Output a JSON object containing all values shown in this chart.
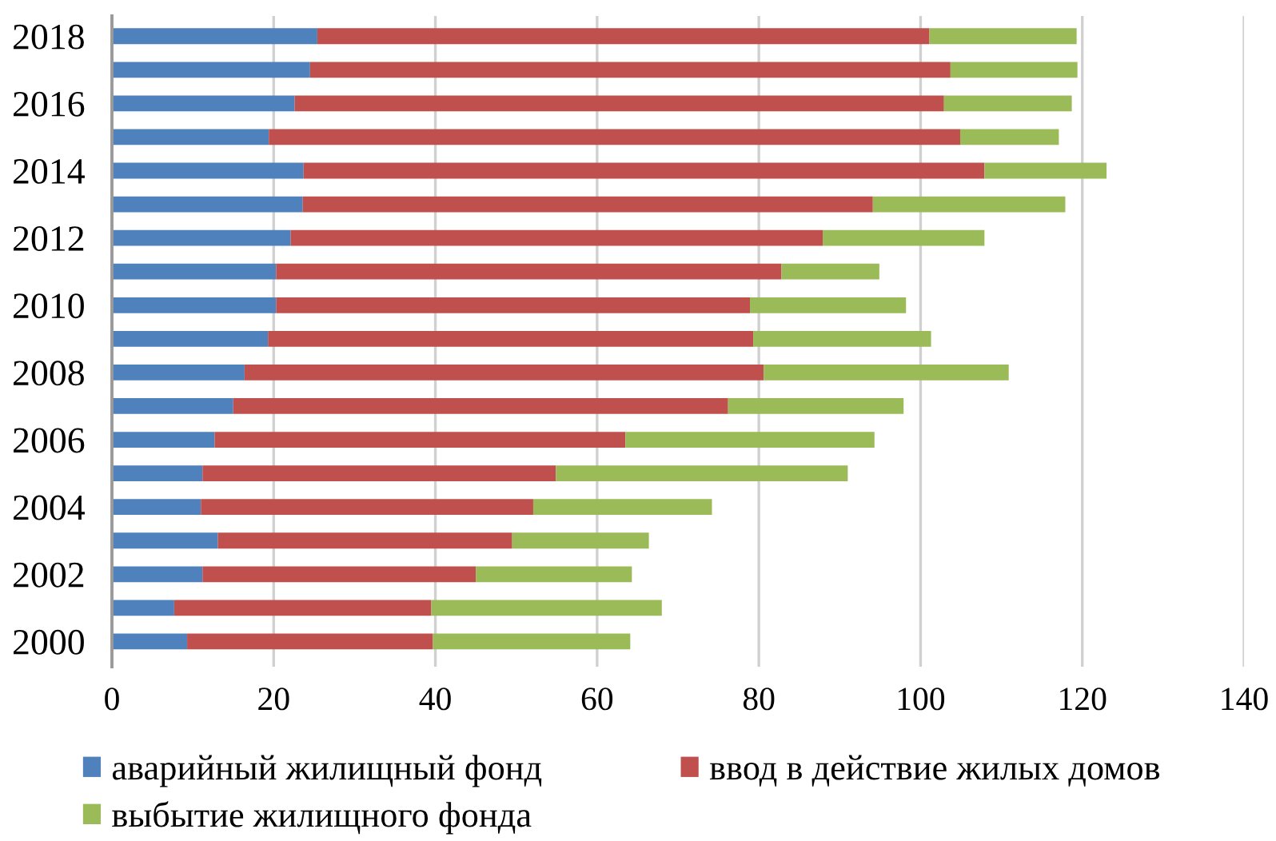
{
  "chart_data": {
    "type": "bar",
    "orientation": "horizontal",
    "stacked": true,
    "categories": [
      "2018",
      null,
      "2016",
      null,
      "2014",
      null,
      "2012",
      null,
      "2010",
      null,
      "2008",
      null,
      "2006",
      null,
      "2004",
      null,
      "2002",
      null,
      "2000"
    ],
    "series": [
      {
        "name": "аварийный жилищный фонд",
        "color": "#4f81bd",
        "values": [
          25.4,
          24.5,
          22.6,
          19.4,
          23.7,
          23.6,
          22.1,
          20.3,
          20.3,
          19.3,
          16.4,
          15.0,
          12.7,
          11.2,
          11.0,
          13.1,
          11.2,
          7.7,
          9.3
        ]
      },
      {
        "name": "ввод в действие жилых домов",
        "color": "#c0504d",
        "values": [
          75.7,
          79.2,
          80.3,
          85.5,
          84.2,
          70.5,
          65.8,
          62.5,
          58.6,
          60.0,
          64.2,
          61.2,
          50.8,
          43.7,
          41.1,
          36.4,
          33.8,
          31.8,
          30.4
        ]
      },
      {
        "name": "выбытие жилищного фонда",
        "color": "#9bbb59",
        "values": [
          18.2,
          15.7,
          15.8,
          12.2,
          15.1,
          23.8,
          20.0,
          12.1,
          19.3,
          22.0,
          30.3,
          21.7,
          30.8,
          36.1,
          22.1,
          16.9,
          19.3,
          28.5,
          24.4
        ]
      }
    ],
    "xlim": [
      0,
      140
    ],
    "xticks": [
      0,
      20,
      40,
      60,
      80,
      100,
      120,
      140
    ],
    "grid": "x",
    "legend": "bottom"
  }
}
